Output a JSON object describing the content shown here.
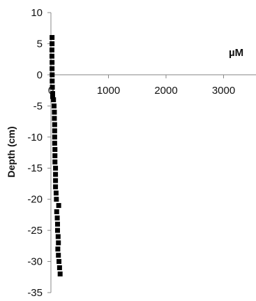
{
  "chart_data": {
    "type": "scatter",
    "title": "",
    "xlabel": "",
    "ylabel": "Depth (cm)",
    "x_unit_label": "µM",
    "xlim": [
      0,
      3500
    ],
    "ylim": [
      -35,
      10
    ],
    "x_ticks": [
      "0",
      "1000",
      "2000",
      "3000"
    ],
    "y_ticks": [
      "10",
      "5",
      "0",
      "-5",
      "-10",
      "-15",
      "-20",
      "-25",
      "-30",
      "-35"
    ],
    "grid": false,
    "legend": "none",
    "marker": "square",
    "marker_color": "#000000",
    "series": [
      {
        "points": [
          {
            "x": 20,
            "y": 6
          },
          {
            "x": 20,
            "y": 5
          },
          {
            "x": 18,
            "y": 4
          },
          {
            "x": 18,
            "y": 3
          },
          {
            "x": 20,
            "y": 2
          },
          {
            "x": 20,
            "y": 1
          },
          {
            "x": 22,
            "y": 0
          },
          {
            "x": 22,
            "y": -1
          },
          {
            "x": 25,
            "y": -2
          },
          {
            "x": 30,
            "y": -3
          },
          {
            "x": 30,
            "y": -3.5
          },
          {
            "x": 45,
            "y": -4
          },
          {
            "x": 55,
            "y": -5
          },
          {
            "x": 60,
            "y": -6
          },
          {
            "x": 60,
            "y": -7
          },
          {
            "x": 65,
            "y": -8
          },
          {
            "x": 65,
            "y": -9
          },
          {
            "x": 65,
            "y": -10
          },
          {
            "x": 65,
            "y": -11
          },
          {
            "x": 70,
            "y": -12
          },
          {
            "x": 70,
            "y": -13
          },
          {
            "x": 70,
            "y": -14
          },
          {
            "x": 80,
            "y": -15
          },
          {
            "x": 80,
            "y": -16
          },
          {
            "x": 80,
            "y": -17
          },
          {
            "x": 80,
            "y": -18
          },
          {
            "x": 90,
            "y": -19
          },
          {
            "x": 95,
            "y": -20
          },
          {
            "x": 135,
            "y": -21
          },
          {
            "x": 100,
            "y": -22
          },
          {
            "x": 110,
            "y": -23
          },
          {
            "x": 115,
            "y": -24
          },
          {
            "x": 115,
            "y": -25
          },
          {
            "x": 125,
            "y": -26
          },
          {
            "x": 130,
            "y": -27
          },
          {
            "x": 120,
            "y": -28
          },
          {
            "x": 130,
            "y": -29
          },
          {
            "x": 140,
            "y": -30
          },
          {
            "x": 150,
            "y": -31
          },
          {
            "x": 160,
            "y": -32
          }
        ]
      }
    ]
  }
}
